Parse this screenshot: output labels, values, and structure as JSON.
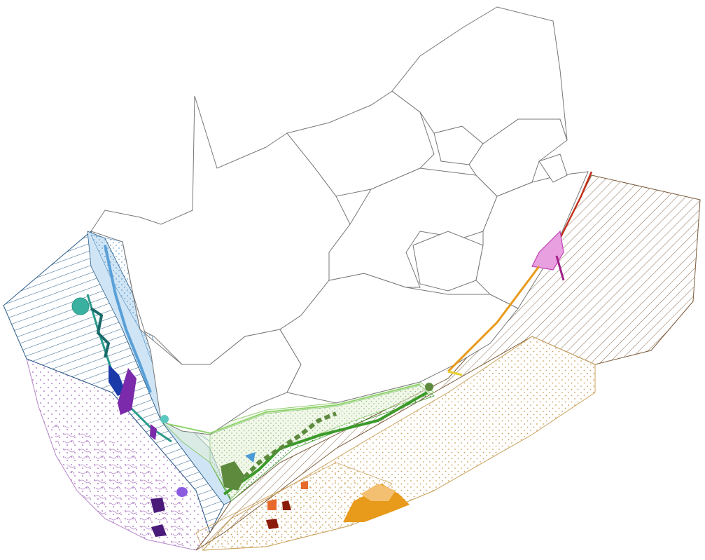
{
  "map": {
    "colors": {
      "land_outline": "#777777",
      "west_blue": "#2b5d8a",
      "west_light": "#cfe4f4",
      "west_dots": "#4a8cc4",
      "purple_region": "#b486c8",
      "south_green": "#3c9a2a",
      "dark_green": "#5e8a3e",
      "brown_hatch": "#7a5a3a",
      "tan_dots": "#c9a05a",
      "orange": "#e89a1a",
      "dark_red": "#8a1a0a",
      "magenta": "#c040b0",
      "violet": "#6a2a9a",
      "teal": "#2a9a8a"
    }
  }
}
